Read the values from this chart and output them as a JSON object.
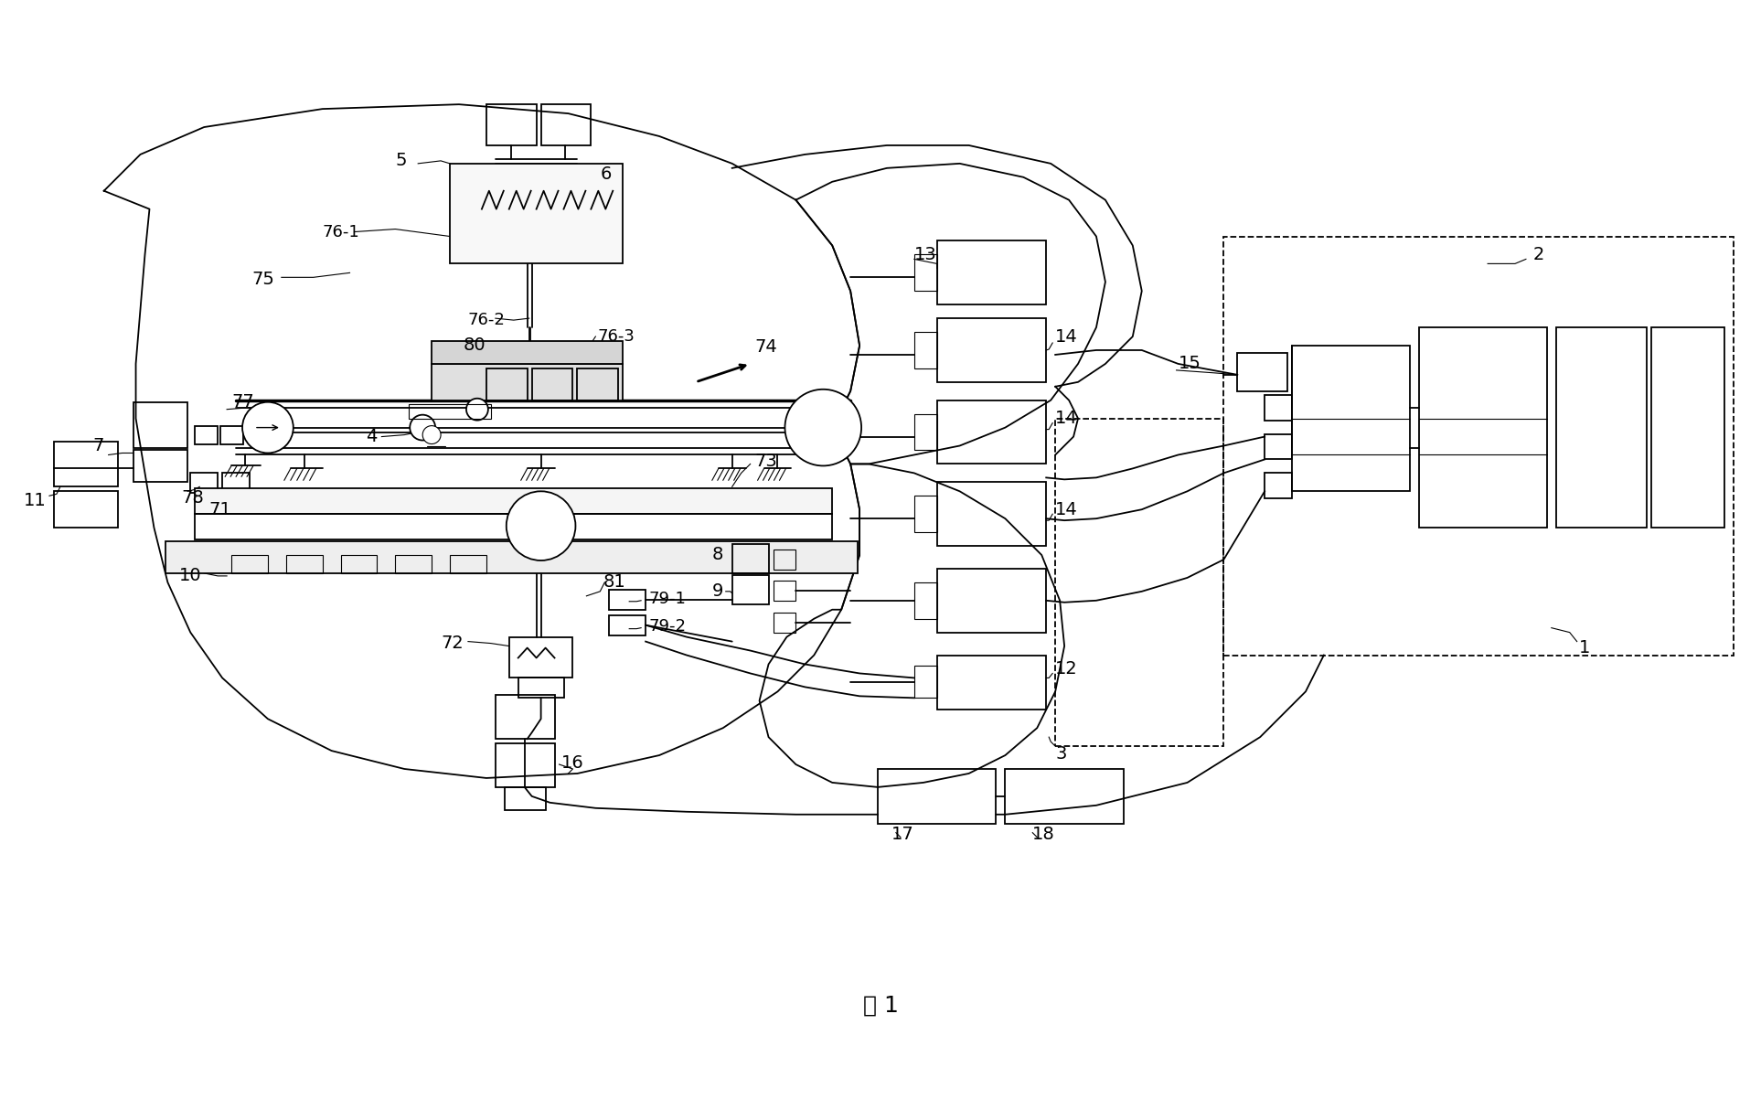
{
  "title": "图 1",
  "bg_color": "#ffffff",
  "line_color": "#000000",
  "fig_width": 19.26,
  "fig_height": 12.14
}
